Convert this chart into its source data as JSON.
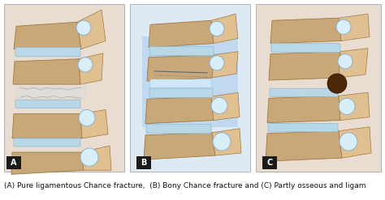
{
  "caption": "(A) Pure ligamentous Chance fracture,  (B) Bony Chance fracture and (C) Partly osseous and ligam",
  "panel_labels": [
    "A",
    "B",
    "C"
  ],
  "background_color": "#ffffff",
  "label_bg_color": "#1a1a1a",
  "label_text_color": "#ffffff",
  "label_fontsize": 7,
  "caption_fontsize": 6.5,
  "caption_color": "#111111",
  "figsize": [
    4.74,
    2.47
  ],
  "dpi": 100,
  "bone_color": "#c8a878",
  "bone_dark": "#a07840",
  "bone_light": "#e0c090",
  "disc_color": "#b8d8e8",
  "disc_edge": "#90b8d0",
  "pedicle_fill": "#d8eef8",
  "pedicle_edge": "#88aac8",
  "gap_color": "#e8e8e0",
  "blue_highlight": "#a8c8e0",
  "dark_spot": "#4a2808",
  "panel_border": "#999999",
  "img_bg": "#f0ece4"
}
